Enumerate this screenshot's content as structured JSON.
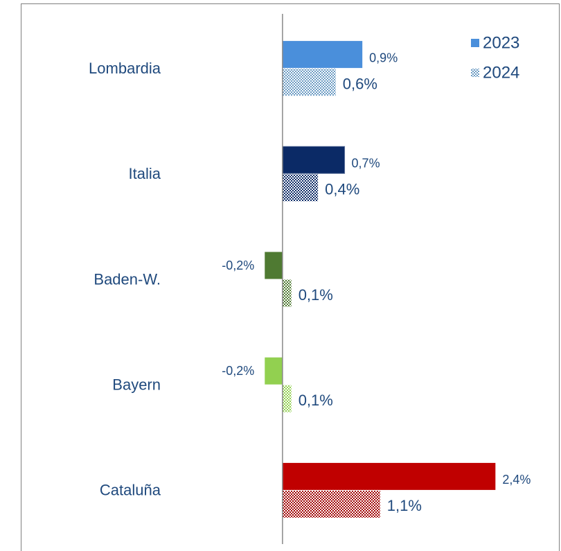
{
  "chart_data": {
    "type": "bar",
    "orientation": "horizontal",
    "categories": [
      "Lombardia",
      "Italia",
      "Baden-W.",
      "Bayern",
      "Cataluña"
    ],
    "series": [
      {
        "name": "2023",
        "color": "#4a8fdb",
        "colors": [
          "#4a8fdb",
          "#0b2a66",
          "#4f7a32",
          "#92d050",
          "#c00000"
        ],
        "values": [
          0.9,
          0.7,
          -0.2,
          -0.2,
          2.4
        ],
        "value_labels": [
          "0,9%",
          "0,7%",
          "-0,2%",
          "-0,2%",
          "2,4%"
        ]
      },
      {
        "name": "2024",
        "color": "#6b9bc3",
        "pattern": "checker",
        "colors": [
          "#6b9bc3",
          "#0b2a66",
          "#4f7a32",
          "#92d050",
          "#a00000"
        ],
        "values": [
          0.6,
          0.4,
          0.1,
          0.1,
          1.1
        ],
        "value_labels": [
          "0,6%",
          "0,4%",
          "0,1%",
          "0,1%",
          "1,1%"
        ]
      }
    ],
    "xlim": [
      -2.95,
      3.1
    ],
    "legend": "upper right"
  }
}
